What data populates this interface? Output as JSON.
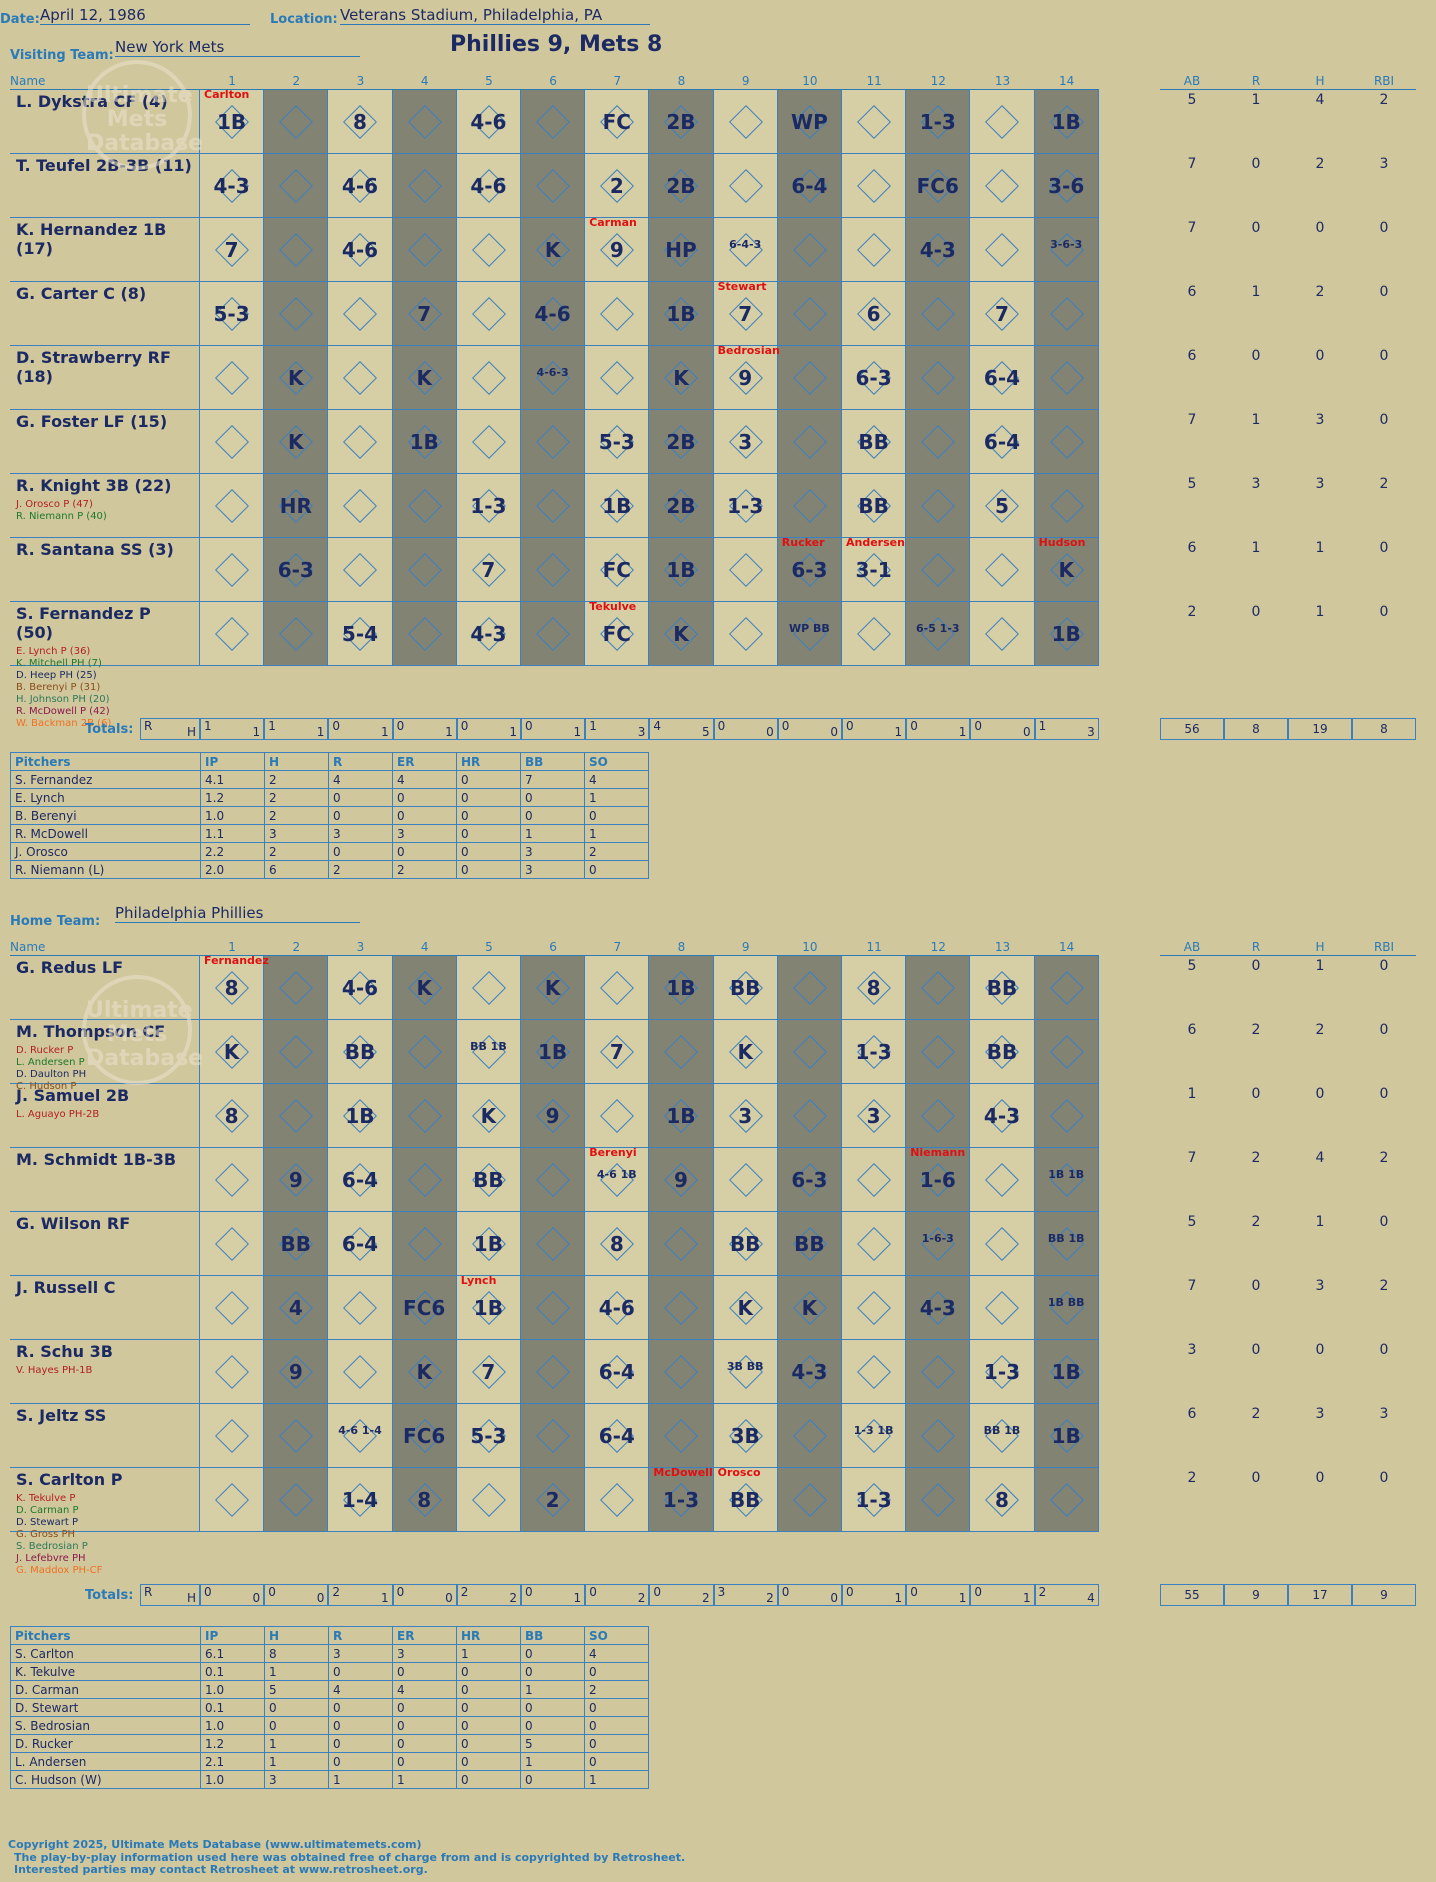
{
  "header": {
    "date_label": "Date:",
    "date": "April 12, 1986",
    "location_label": "Location:",
    "location": "Veterans Stadium, Philadelphia, PA",
    "result": "Phillies 9, Mets 8",
    "visiting_label": "Visiting Team:",
    "visiting_team": "New York Mets",
    "home_label": "Home Team:",
    "home_team": "Philadelphia Phillies"
  },
  "columns": {
    "name": "Name",
    "innings": [
      "1",
      "2",
      "3",
      "4",
      "5",
      "6",
      "7",
      "8",
      "9",
      "10",
      "11",
      "12",
      "13",
      "14"
    ],
    "stats": [
      "AB",
      "R",
      "H",
      "RBI"
    ]
  },
  "visitors": [
    {
      "name": "L. Dykstra CF (4)",
      "subs": [],
      "stats": [
        "5",
        "1",
        "4",
        "2"
      ]
    },
    {
      "name": "T. Teufel 2B-3B (11)",
      "subs": [],
      "stats": [
        "7",
        "0",
        "2",
        "3"
      ]
    },
    {
      "name": "K. Hernandez 1B (17)",
      "subs": [],
      "stats": [
        "7",
        "0",
        "0",
        "0"
      ]
    },
    {
      "name": "G. Carter C (8)",
      "subs": [],
      "stats": [
        "6",
        "1",
        "2",
        "0"
      ]
    },
    {
      "name": "D. Strawberry RF (18)",
      "subs": [],
      "stats": [
        "6",
        "0",
        "0",
        "0"
      ]
    },
    {
      "name": "G. Foster LF (15)",
      "subs": [],
      "stats": [
        "7",
        "1",
        "3",
        "0"
      ]
    },
    {
      "name": "R. Knight 3B (22)",
      "subs": [
        "J. Orosco P (47)",
        "R. Niemann P (40)"
      ],
      "stats": [
        "5",
        "3",
        "3",
        "2"
      ]
    },
    {
      "name": "R. Santana SS (3)",
      "subs": [],
      "stats": [
        "6",
        "1",
        "1",
        "0"
      ]
    },
    {
      "name": "S. Fernandez P (50)",
      "subs": [
        "E. Lynch P (36)",
        "K. Mitchell PH (7)",
        "D. Heep PH (25)",
        "B. Berenyi P (31)",
        "H. Johnson PH (20)",
        "R. McDowell P (42)",
        "W. Backman 2B (6)"
      ],
      "stats": [
        "2",
        "0",
        "1",
        "0"
      ]
    }
  ],
  "visitor_results": [
    {
      "1": "1B",
      "3": "8",
      "5": "4-6",
      "7": "FC",
      "8": "2B",
      "10": "WP",
      "12": "1-3",
      "14": "1B"
    },
    {
      "1": "4-3",
      "3": "4-6",
      "5": "4-6",
      "7": "2",
      "8": "2B",
      "10": "6-4",
      "12": "FC6",
      "14": "3-6"
    },
    {
      "1": "7",
      "3": "4-6",
      "6": "K",
      "7": "9",
      "8": "HP",
      "9": "6-4-3",
      "12": "4-3",
      "14": "3-6-3"
    },
    {
      "1": "5-3",
      "4": "7",
      "6": "4-6",
      "8": "1B",
      "9": "7",
      "11": "6",
      "13": "7"
    },
    {
      "2": "K",
      "4": "K",
      "6": "4-6-3",
      "8": "K",
      "9": "9",
      "11": "6-3",
      "13": "6-4"
    },
    {
      "2": "K",
      "4": "1B",
      "7": "5-3",
      "8": "2B",
      "9": "3",
      "11": "BB",
      "13": "6-4"
    },
    {
      "2": "HR",
      "5": "1-3",
      "7": "1B",
      "8": "2B",
      "9": "1-3",
      "11": "BB",
      "13": "5"
    },
    {
      "2": "6-3",
      "5": "7",
      "7": "FC",
      "8": "1B",
      "10": "6-3",
      "11": "3-1",
      "14": "K"
    },
    {
      "3": "5-4",
      "5": "4-3",
      "7": "FC",
      "8": "K",
      "10": "WP BB",
      "12": "6-5 1-3",
      "14": "1B"
    }
  ],
  "visitor_pitcher_notes": [
    {
      "row": 0,
      "col": 1,
      "text": "Carlton"
    },
    {
      "row": 2,
      "col": 7,
      "text": "Carman"
    },
    {
      "row": 3,
      "col": 9,
      "text": "Stewart"
    },
    {
      "row": 4,
      "col": 9,
      "text": "Bedrosian"
    },
    {
      "row": 7,
      "col": 10,
      "text": "Rucker"
    },
    {
      "row": 7,
      "col": 11,
      "text": "Andersen"
    },
    {
      "row": 7,
      "col": 14,
      "text": "Hudson"
    },
    {
      "row": 8,
      "col": 7,
      "text": "Tekulve"
    }
  ],
  "visitor_totals": {
    "label": "Totals:",
    "rh_label": [
      "R",
      "H"
    ],
    "innings": [
      [
        "1",
        "1"
      ],
      [
        "1",
        "1"
      ],
      [
        "0",
        "1"
      ],
      [
        "0",
        "1"
      ],
      [
        "0",
        "1"
      ],
      [
        "0",
        "1"
      ],
      [
        "1",
        "3"
      ],
      [
        "4",
        "5"
      ],
      [
        "0",
        "0"
      ],
      [
        "0",
        "0"
      ],
      [
        "0",
        "1"
      ],
      [
        "0",
        "1"
      ],
      [
        "0",
        "0"
      ],
      [
        "1",
        "3"
      ]
    ],
    "stats": [
      "56",
      "8",
      "19",
      "8"
    ]
  },
  "visitor_pitchers": {
    "headers": [
      "Pitchers",
      "IP",
      "H",
      "R",
      "ER",
      "HR",
      "BB",
      "SO"
    ],
    "rows": [
      [
        "S. Fernandez",
        "4.1",
        "2",
        "4",
        "4",
        "0",
        "7",
        "4"
      ],
      [
        "E. Lynch",
        "1.2",
        "2",
        "0",
        "0",
        "0",
        "0",
        "1"
      ],
      [
        "B. Berenyi",
        "1.0",
        "2",
        "0",
        "0",
        "0",
        "0",
        "0"
      ],
      [
        "R. McDowell",
        "1.1",
        "3",
        "3",
        "3",
        "0",
        "1",
        "1"
      ],
      [
        "J. Orosco",
        "2.2",
        "2",
        "0",
        "0",
        "0",
        "3",
        "2"
      ],
      [
        "R. Niemann (L)",
        "2.0",
        "6",
        "2",
        "2",
        "0",
        "3",
        "0"
      ]
    ]
  },
  "home": [
    {
      "name": "G. Redus LF",
      "subs": [],
      "stats": [
        "5",
        "0",
        "1",
        "0"
      ]
    },
    {
      "name": "M. Thompson CF",
      "subs": [
        "D. Rucker P",
        "L. Andersen P",
        "D. Daulton PH",
        "C. Hudson P"
      ],
      "stats": [
        "6",
        "2",
        "2",
        "0"
      ]
    },
    {
      "name": "J. Samuel 2B",
      "subs": [
        "L. Aguayo PH-2B"
      ],
      "stats": [
        "1",
        "0",
        "0",
        "0"
      ]
    },
    {
      "name": "M. Schmidt 1B-3B",
      "subs": [],
      "stats": [
        "7",
        "2",
        "4",
        "2"
      ]
    },
    {
      "name": "G. Wilson RF",
      "subs": [],
      "stats": [
        "5",
        "2",
        "1",
        "0"
      ]
    },
    {
      "name": "J. Russell C",
      "subs": [],
      "stats": [
        "7",
        "0",
        "3",
        "2"
      ]
    },
    {
      "name": "R. Schu 3B",
      "subs": [
        "V. Hayes PH-1B"
      ],
      "stats": [
        "3",
        "0",
        "0",
        "0"
      ]
    },
    {
      "name": "S. Jeltz SS",
      "subs": [],
      "stats": [
        "6",
        "2",
        "3",
        "3"
      ]
    },
    {
      "name": "S. Carlton P",
      "subs": [
        "K. Tekulve P",
        "D. Carman P",
        "D. Stewart P",
        "G. Gross PH",
        "S. Bedrosian P",
        "J. Lefebvre PH",
        "G. Maddox PH-CF"
      ],
      "stats": [
        "2",
        "0",
        "0",
        "0"
      ]
    }
  ],
  "home_results": [
    {
      "1": "8",
      "3": "4-6",
      "4": "K",
      "6": "K",
      "8": "1B",
      "9": "BB",
      "11": "8",
      "13": "BB"
    },
    {
      "1": "K",
      "3": "BB",
      "5": "BB 1B",
      "6": "1B",
      "7": "7",
      "9": "K",
      "11": "1-3",
      "13": "BB"
    },
    {
      "1": "8",
      "3": "1B",
      "5": "K",
      "6": "9",
      "8": "1B",
      "9": "3",
      "11": "3",
      "13": "4-3"
    },
    {
      "2": "9",
      "3": "6-4",
      "5": "BB",
      "7": "4-6 1B",
      "8": "9",
      "10": "6-3",
      "12": "1-6",
      "14": "1B 1B"
    },
    {
      "2": "BB",
      "3": "6-4",
      "5": "1B",
      "7": "8",
      "9": "BB",
      "10": "BB",
      "12": "1-6-3",
      "14": "BB 1B"
    },
    {
      "2": "4",
      "4": "FC6",
      "5": "1B",
      "7": "4-6",
      "9": "K",
      "10": "K",
      "12": "4-3",
      "14": "1B BB"
    },
    {
      "2": "9",
      "4": "K",
      "5": "7",
      "7": "6-4",
      "9": "3B BB",
      "10": "4-3",
      "13": "1-3",
      "14": "1B"
    },
    {
      "3": "4-6 1-4",
      "4": "FC6",
      "5": "5-3",
      "7": "6-4",
      "9": "3B",
      "11": "1-3 1B",
      "13": "BB 1B",
      "14": "1B"
    },
    {
      "3": "1-4",
      "4": "8",
      "6": "2",
      "8": "1-3",
      "9": "BB",
      "11": "1-3",
      "13": "8"
    }
  ],
  "home_pitcher_notes": [
    {
      "row": 0,
      "col": 1,
      "text": "Fernandez"
    },
    {
      "row": 3,
      "col": 7,
      "text": "Berenyi"
    },
    {
      "row": 3,
      "col": 12,
      "text": "Niemann"
    },
    {
      "row": 5,
      "col": 5,
      "text": "Lynch"
    },
    {
      "row": 8,
      "col": 8,
      "text": "McDowell"
    },
    {
      "row": 8,
      "col": 9,
      "text": "Orosco"
    }
  ],
  "home_totals": {
    "label": "Totals:",
    "rh_label": [
      "R",
      "H"
    ],
    "innings": [
      [
        "0",
        "0"
      ],
      [
        "0",
        "0"
      ],
      [
        "2",
        "1"
      ],
      [
        "0",
        "0"
      ],
      [
        "2",
        "2"
      ],
      [
        "0",
        "1"
      ],
      [
        "0",
        "2"
      ],
      [
        "0",
        "2"
      ],
      [
        "3",
        "2"
      ],
      [
        "0",
        "0"
      ],
      [
        "0",
        "1"
      ],
      [
        "0",
        "1"
      ],
      [
        "0",
        "1"
      ],
      [
        "2",
        "4"
      ]
    ],
    "stats": [
      "55",
      "9",
      "17",
      "9"
    ]
  },
  "home_pitchers": {
    "headers": [
      "Pitchers",
      "IP",
      "H",
      "R",
      "ER",
      "HR",
      "BB",
      "SO"
    ],
    "rows": [
      [
        "S. Carlton",
        "6.1",
        "8",
        "3",
        "3",
        "1",
        "0",
        "4"
      ],
      [
        "K. Tekulve",
        "0.1",
        "1",
        "0",
        "0",
        "0",
        "0",
        "0"
      ],
      [
        "D. Carman",
        "1.0",
        "5",
        "4",
        "4",
        "0",
        "1",
        "2"
      ],
      [
        "D. Stewart",
        "0.1",
        "0",
        "0",
        "0",
        "0",
        "0",
        "0"
      ],
      [
        "S. Bedrosian",
        "1.0",
        "0",
        "0",
        "0",
        "0",
        "0",
        "0"
      ],
      [
        "D. Rucker",
        "1.2",
        "1",
        "0",
        "0",
        "0",
        "5",
        "0"
      ],
      [
        "L. Andersen",
        "2.1",
        "1",
        "0",
        "0",
        "0",
        "1",
        "0"
      ],
      [
        "C. Hudson (W)",
        "1.0",
        "3",
        "1",
        "1",
        "0",
        "0",
        "1"
      ]
    ]
  },
  "watermark": [
    "Ultimate",
    "Mets",
    "Database"
  ],
  "footer": {
    "line1": "Copyright 2025, Ultimate Mets Database (www.ultimatemets.com)",
    "line2": "The play-by-play information used here was obtained free of charge from and is copyrighted by Retrosheet.",
    "line3": "Interested parties may contact Retrosheet at www.retrosheet.org."
  },
  "colors": {
    "accent": "#2a7ab8",
    "ink": "#1c2a64",
    "background": "#d1c79d",
    "dark_cell": "#838374",
    "light_cell": "#d6cfa6",
    "note_red": "#e01010",
    "orange": "#f07020"
  }
}
